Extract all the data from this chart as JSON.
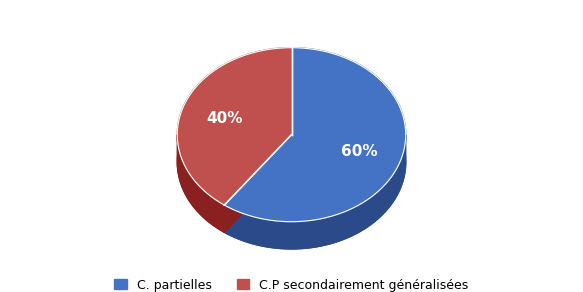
{
  "values": [
    60,
    40
  ],
  "labels": [
    "60%",
    "40%"
  ],
  "colors_top": [
    "#4472C4",
    "#C0504D"
  ],
  "colors_side": [
    "#2A4A8A",
    "#8B2020"
  ],
  "legend_labels": [
    "C. partielles",
    "C.P secondairement généralisées"
  ],
  "startangle_deg": 90,
  "background_color": "#FFFFFF",
  "label_fontsize": 11,
  "legend_fontsize": 9
}
